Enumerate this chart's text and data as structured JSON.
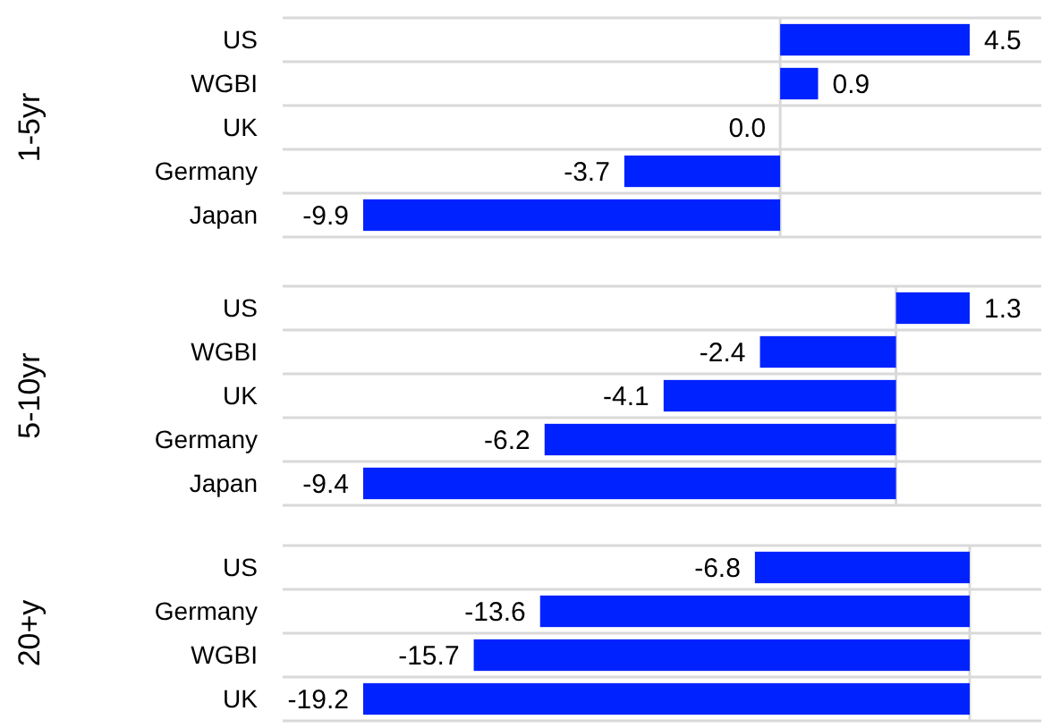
{
  "chart_data": [
    {
      "type": "bar",
      "orientation": "horizontal",
      "ylabel": "1-5yr",
      "categories": [
        "US",
        "WGBI",
        "UK",
        "Germany",
        "Japan"
      ],
      "values": [
        4.5,
        0.9,
        0.0,
        -3.7,
        -9.9
      ],
      "value_labels": [
        "4.5",
        "0.9",
        "0.0",
        "-3.7",
        "-9.9"
      ],
      "color": "#0022ff",
      "grid": true
    },
    {
      "type": "bar",
      "orientation": "horizontal",
      "ylabel": "5-10yr",
      "categories": [
        "US",
        "WGBI",
        "UK",
        "Germany",
        "Japan"
      ],
      "values": [
        1.3,
        -2.4,
        -4.1,
        -6.2,
        -9.4
      ],
      "color": "#0022ff",
      "data_labels": true,
      "grid": true
    },
    {
      "type": "bar",
      "orientation": "horizontal",
      "ylabel": "20+y",
      "categories": [
        "US",
        "Germany",
        "WGBI",
        "UK"
      ],
      "values": [
        -6.8,
        -13.6,
        -15.7,
        -19.2
      ],
      "color": "#0022ff",
      "data_labels": true,
      "grid": true
    }
  ]
}
